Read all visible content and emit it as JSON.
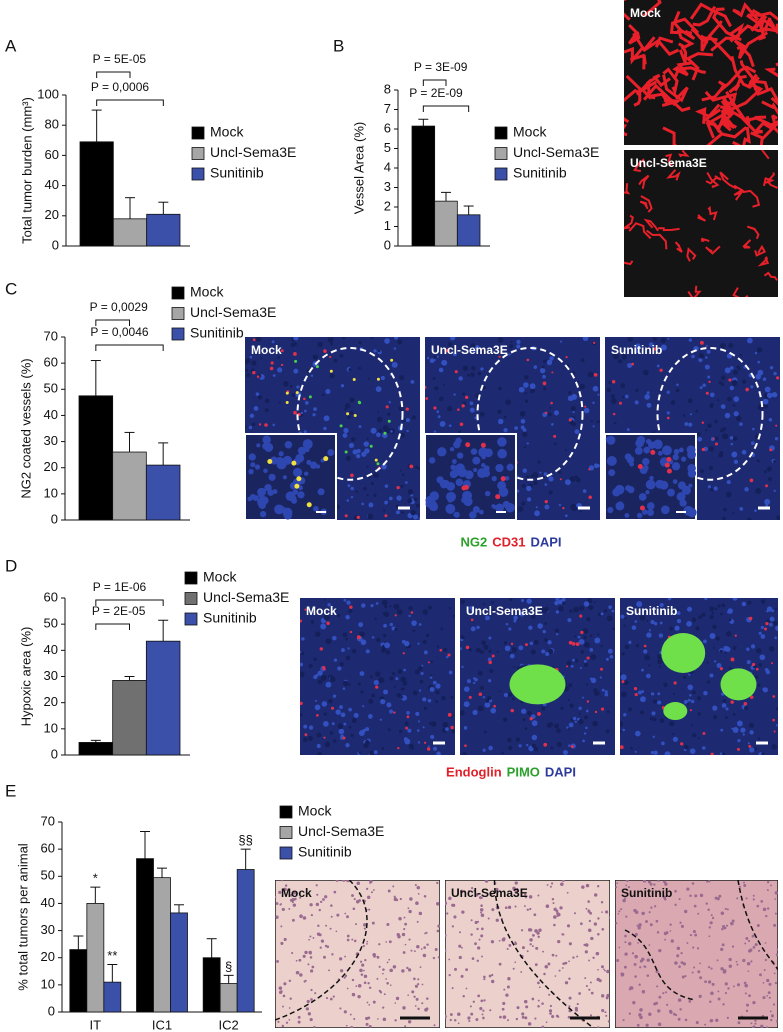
{
  "chart_data": [
    {
      "panel": "A",
      "type": "bar",
      "y_label": "Total tumor burden (mm³)",
      "ylim": [
        0,
        100
      ],
      "yticks": [
        0,
        20,
        40,
        60,
        80,
        100
      ],
      "series": [
        {
          "name": "Mock",
          "color": "#000000",
          "values": [
            69
          ],
          "errors": [
            21
          ]
        },
        {
          "name": "Uncl-Sema3E",
          "color": "#a6a6a6",
          "values": [
            18
          ],
          "errors": [
            14
          ]
        },
        {
          "name": "Sunitinib",
          "color": "#3b50a8",
          "values": [
            21
          ],
          "errors": [
            8
          ]
        }
      ],
      "annotations": [
        "P = 5E-05",
        "P = 0,0006"
      ]
    },
    {
      "panel": "B",
      "type": "bar",
      "y_label": "Vessel Area (%)",
      "ylim": [
        0,
        8
      ],
      "yticks": [
        0,
        1,
        2,
        3,
        4,
        5,
        6,
        7,
        8
      ],
      "series": [
        {
          "name": "Mock",
          "color": "#000000",
          "values": [
            6.15
          ],
          "errors": [
            0.35
          ]
        },
        {
          "name": "Uncl-Sema3E",
          "color": "#a6a6a6",
          "values": [
            2.3
          ],
          "errors": [
            0.45
          ]
        },
        {
          "name": "Sunitinib",
          "color": "#3b50a8",
          "values": [
            1.6
          ],
          "errors": [
            0.45
          ]
        }
      ],
      "annotations": [
        "P = 3E-09",
        "P = 2E-09"
      ],
      "images": [
        "Mock",
        "Uncl-Sema3E"
      ]
    },
    {
      "panel": "C",
      "type": "bar",
      "y_label": "NG2 coated vessels (%)",
      "ylim": [
        0,
        70
      ],
      "yticks": [
        0,
        10,
        20,
        30,
        40,
        50,
        60,
        70
      ],
      "series": [
        {
          "name": "Mock",
          "color": "#000000",
          "values": [
            47.5
          ],
          "errors": [
            13.5
          ]
        },
        {
          "name": "Uncl-Sema3E",
          "color": "#a6a6a6",
          "values": [
            26
          ],
          "errors": [
            7.5
          ]
        },
        {
          "name": "Sunitinib",
          "color": "#3b50a8",
          "values": [
            21
          ],
          "errors": [
            8.5
          ]
        }
      ],
      "annotations": [
        "P = 0,0029",
        "P = 0,0046"
      ],
      "images": [
        "Mock",
        "Uncl-Sema3E",
        "Sunitinib"
      ],
      "caption": [
        {
          "text": "NG2",
          "color": "#2ca02c"
        },
        {
          "text": "CD31",
          "color": "#e0202a"
        },
        {
          "text": "DAPI",
          "color": "#2b3a9c"
        }
      ]
    },
    {
      "panel": "D",
      "type": "bar",
      "y_label": "Hypoxic area (%)",
      "ylim": [
        0,
        60
      ],
      "yticks": [
        0,
        10,
        20,
        30,
        40,
        50,
        60
      ],
      "series": [
        {
          "name": "Mock",
          "color": "#000000",
          "values": [
            4.8
          ],
          "errors": [
            0.8
          ]
        },
        {
          "name": "Uncl-Sema3E",
          "color": "#707070",
          "values": [
            28.5
          ],
          "errors": [
            1.5
          ]
        },
        {
          "name": "Sunitinib",
          "color": "#3b50a8",
          "values": [
            43.5
          ],
          "errors": [
            8
          ]
        }
      ],
      "annotations": [
        "P = 1E-06",
        "P = 2E-05"
      ],
      "images": [
        "Mock",
        "Uncl-Sema3E",
        "Sunitinib"
      ],
      "caption": [
        {
          "text": "Endoglin",
          "color": "#e0202a"
        },
        {
          "text": "PIMO",
          "color": "#2ca02c"
        },
        {
          "text": "DAPI",
          "color": "#2b3a9c"
        }
      ]
    },
    {
      "panel": "E",
      "type": "grouped_bar",
      "y_label": "% total tumors per animal",
      "ylim": [
        0,
        70
      ],
      "yticks": [
        0,
        10,
        20,
        30,
        40,
        50,
        60,
        70
      ],
      "categories": [
        "IT",
        "IC1",
        "IC2"
      ],
      "series": [
        {
          "name": "Mock",
          "color": "#000000",
          "values": [
            23,
            56.5,
            20
          ],
          "errors": [
            5,
            10,
            7
          ]
        },
        {
          "name": "Uncl-Sema3E",
          "color": "#a6a6a6",
          "values": [
            40,
            49.5,
            10.5
          ],
          "errors": [
            6,
            3.5,
            3
          ]
        },
        {
          "name": "Sunitinib",
          "color": "#3b50a8",
          "values": [
            11,
            36.5,
            52.5
          ],
          "errors": [
            6.5,
            3,
            7.5
          ]
        }
      ],
      "annotations": [
        "*",
        "**",
        "§",
        "§§"
      ],
      "images": [
        "Mock",
        "Uncl-Sema3E",
        "Sunitinib"
      ]
    }
  ]
}
